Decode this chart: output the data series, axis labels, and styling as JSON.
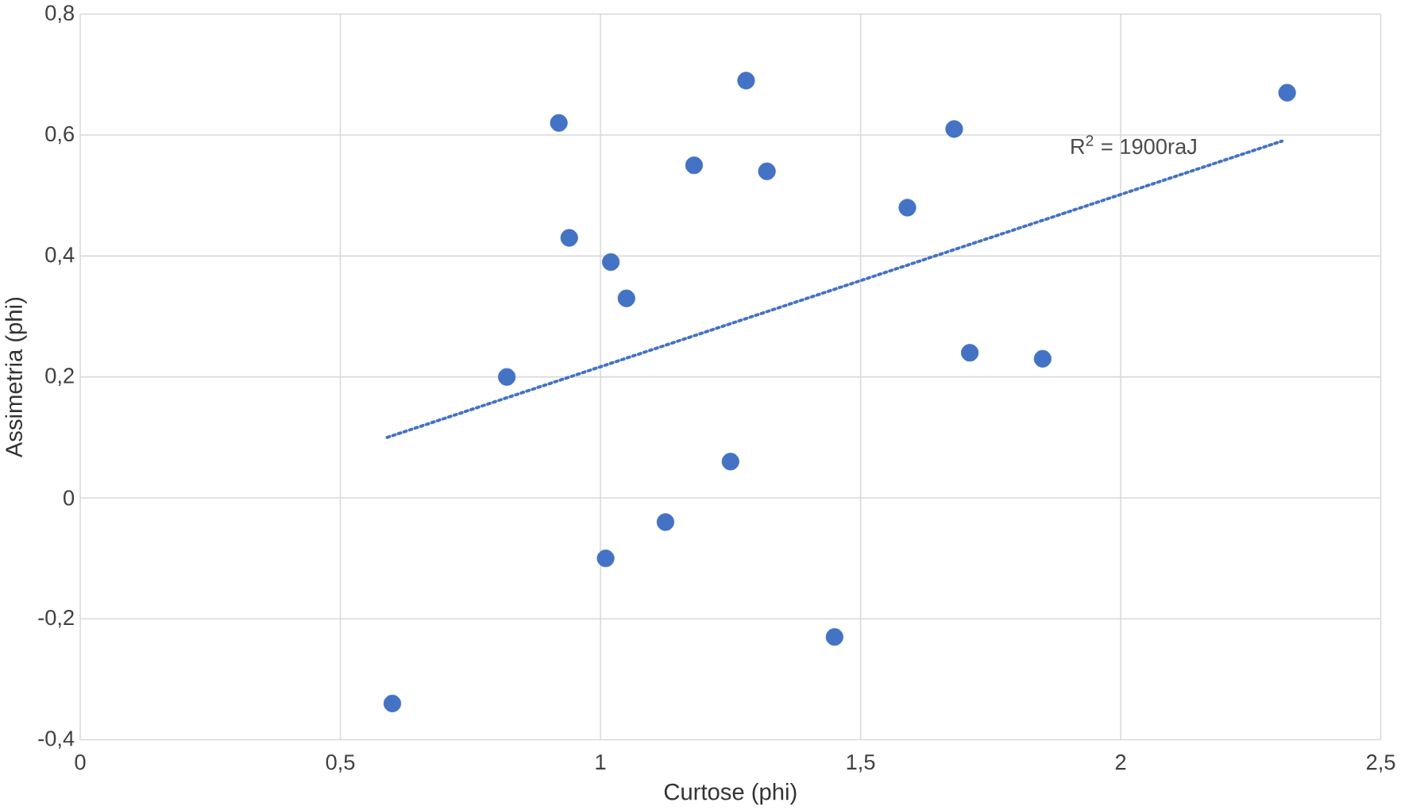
{
  "chart_data": {
    "type": "scatter",
    "xlabel": "Curtose (phi)",
    "ylabel": "Assimetria (phi)",
    "xlim": [
      0,
      2.5
    ],
    "xticks": [
      0,
      {
        "value": 0.5,
        "label": "0,5"
      },
      1,
      {
        "value": 1.5,
        "label": "1,5"
      },
      2,
      {
        "value": 2.5,
        "label": "2,5"
      }
    ],
    "ylim": [
      -0.4,
      0.8
    ],
    "yticks": [
      {
        "value": -0.4,
        "label": "-0,4"
      },
      {
        "value": -0.2,
        "label": "-0,2"
      },
      0,
      {
        "value": 0.2,
        "label": "0,2"
      },
      {
        "value": 0.4,
        "label": "0,4"
      },
      {
        "value": 0.6,
        "label": "0,6"
      },
      {
        "value": 0.8,
        "label": "0,8"
      }
    ],
    "grid": true,
    "series": [
      {
        "marker": "circle",
        "color": "#4472c4",
        "x": [
          0.82,
          0.92,
          0.94,
          1.02,
          1.05,
          1.01,
          1.125,
          1.18,
          1.28,
          1.32,
          1.25,
          1.45,
          1.59,
          1.68,
          1.71,
          1.85,
          2.32,
          0.6
        ],
        "values": [
          0.2,
          0.62,
          0.43,
          0.39,
          0.33,
          -0.1,
          -0.04,
          0.55,
          0.69,
          0.54,
          0.06,
          -0.23,
          0.48,
          0.61,
          0.24,
          0.23,
          0.67,
          -0.34
        ]
      },
      {
        "type": "line",
        "marker": "none",
        "line_style": "dotted",
        "color": "#4472c4",
        "x": [
          0.59,
          2.31
        ],
        "values": [
          0.1,
          0.59
        ]
      }
    ],
    "annotations": [
      "R$^{2}$ = 1900raJ"
    ]
  }
}
